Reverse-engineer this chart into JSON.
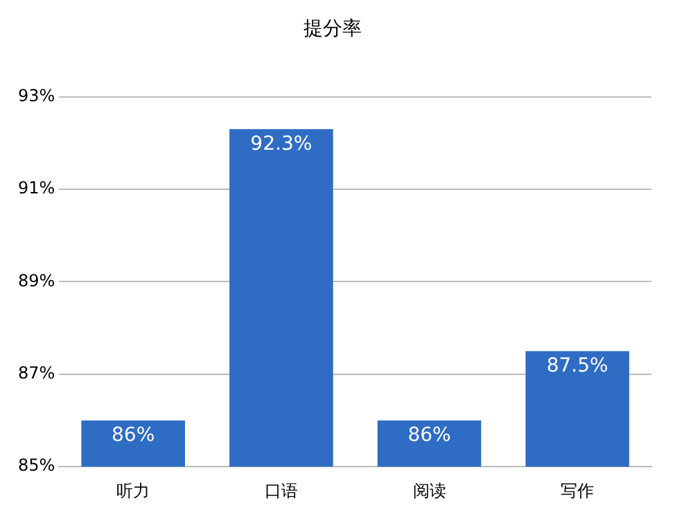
{
  "chart_data": {
    "type": "bar",
    "title": "提分率",
    "categories": [
      "听力",
      "口语",
      "阅读",
      "写作"
    ],
    "values": [
      86,
      92.3,
      86,
      87.5
    ],
    "value_labels": [
      "86%",
      "92.3%",
      "86%",
      "87.5%"
    ],
    "color": "#2f6cc4",
    "ylim": [
      85,
      93
    ],
    "yticks": [
      {
        "value": 85,
        "label": "85%"
      },
      {
        "value": 87,
        "label": "87%"
      },
      {
        "value": 89,
        "label": "89%"
      },
      {
        "value": 91,
        "label": "91%"
      },
      {
        "value": 93,
        "label": "93%"
      }
    ],
    "grid": "y",
    "legend": false
  }
}
